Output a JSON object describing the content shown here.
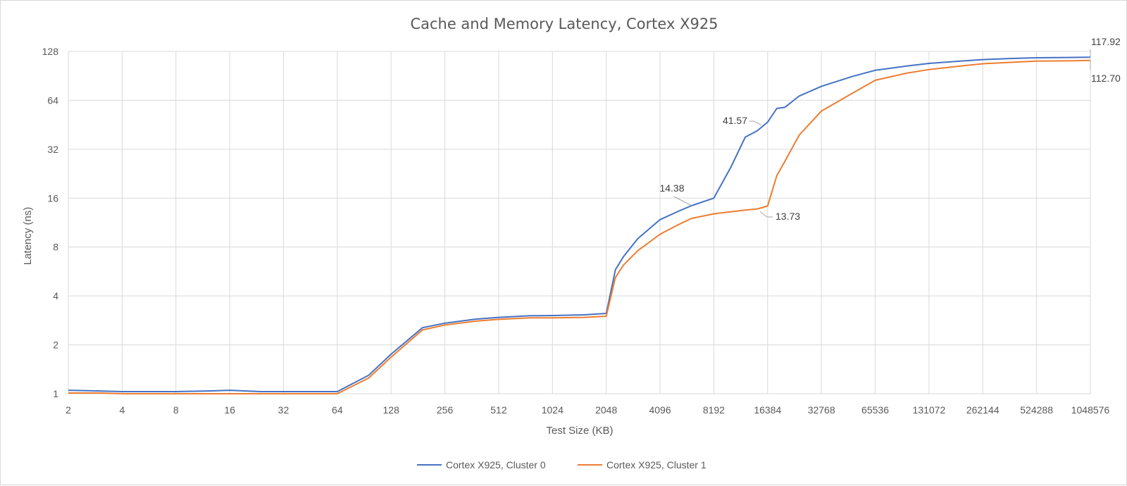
{
  "chart_data": {
    "type": "line",
    "title": "Cache and Memory Latency, Cortex X925",
    "xlabel": "Test Size (KB)",
    "ylabel": "Latency (ns)",
    "x_scale": "log2",
    "y_scale": "log2",
    "xlim": [
      2,
      1048576
    ],
    "ylim": [
      1,
      128
    ],
    "x_ticks": [
      "2",
      "4",
      "8",
      "16",
      "32",
      "64",
      "128",
      "256",
      "512",
      "1024",
      "2048",
      "4096",
      "8192",
      "16384",
      "32768",
      "65536",
      "131072",
      "262144",
      "524288",
      "1048576"
    ],
    "y_ticks": [
      "1",
      "2",
      "4",
      "8",
      "16",
      "32",
      "64",
      "128"
    ],
    "grid": true,
    "legend_position": "bottom",
    "series": [
      {
        "name": "Cortex X925, Cluster 0",
        "color": "#4472C4",
        "x": [
          2,
          3,
          4,
          6,
          8,
          12,
          16,
          24,
          32,
          48,
          64,
          96,
          128,
          192,
          256,
          384,
          512,
          768,
          1024,
          1536,
          2048,
          2304,
          2560,
          3072,
          4096,
          5120,
          6144,
          8192,
          10240,
          12288,
          14336,
          16384,
          18432,
          20480,
          24576,
          32768,
          49152,
          65536,
          98304,
          131072,
          196608,
          262144,
          393216,
          524288,
          786432,
          1048576
        ],
        "values": [
          1.05,
          1.04,
          1.03,
          1.03,
          1.03,
          1.04,
          1.05,
          1.03,
          1.03,
          1.03,
          1.03,
          1.3,
          1.75,
          2.55,
          2.72,
          2.88,
          2.95,
          3.02,
          3.03,
          3.06,
          3.12,
          5.8,
          7.0,
          9.0,
          11.8,
          13.2,
          14.38,
          16.0,
          25.0,
          38.0,
          41.57,
          47.0,
          57.0,
          58.0,
          68.0,
          78.0,
          90.0,
          98.0,
          104.0,
          108.0,
          111.5,
          114.0,
          116.0,
          117.0,
          117.5,
          117.92
        ]
      },
      {
        "name": "Cortex X925, Cluster 1",
        "color": "#ED7D31",
        "x": [
          2,
          3,
          4,
          6,
          8,
          12,
          16,
          24,
          32,
          48,
          64,
          96,
          128,
          192,
          256,
          384,
          512,
          768,
          1024,
          1536,
          2048,
          2304,
          2560,
          3072,
          4096,
          5120,
          6144,
          8192,
          10240,
          12288,
          14336,
          16384,
          18432,
          20480,
          24576,
          32768,
          49152,
          65536,
          98304,
          131072,
          196608,
          262144,
          393216,
          524288,
          786432,
          1048576
        ],
        "values": [
          1.01,
          1.01,
          1.0,
          1.0,
          1.0,
          1.0,
          1.0,
          1.0,
          1.0,
          1.0,
          1.0,
          1.25,
          1.68,
          2.47,
          2.65,
          2.8,
          2.87,
          2.93,
          2.93,
          2.95,
          3.0,
          5.2,
          6.2,
          7.6,
          9.6,
          10.9,
          12.0,
          12.8,
          13.2,
          13.5,
          13.73,
          14.3,
          22.0,
          27.0,
          39.0,
          55.0,
          71.0,
          85.0,
          94.0,
          99.0,
          104.0,
          107.5,
          110.0,
          111.5,
          112.0,
          112.7
        ]
      }
    ],
    "annotations": [
      {
        "text": "117.92",
        "series": 0,
        "x": 1048576,
        "y": 117.92
      },
      {
        "text": "112.70",
        "series": 1,
        "x": 1048576,
        "y": 112.7
      },
      {
        "text": "41.57",
        "series": 0,
        "x": 14336,
        "y": 41.57
      },
      {
        "text": "14.38",
        "series": 0,
        "x": 6144,
        "y": 14.38
      },
      {
        "text": "13.73",
        "series": 1,
        "x": 14336,
        "y": 13.73
      }
    ]
  }
}
